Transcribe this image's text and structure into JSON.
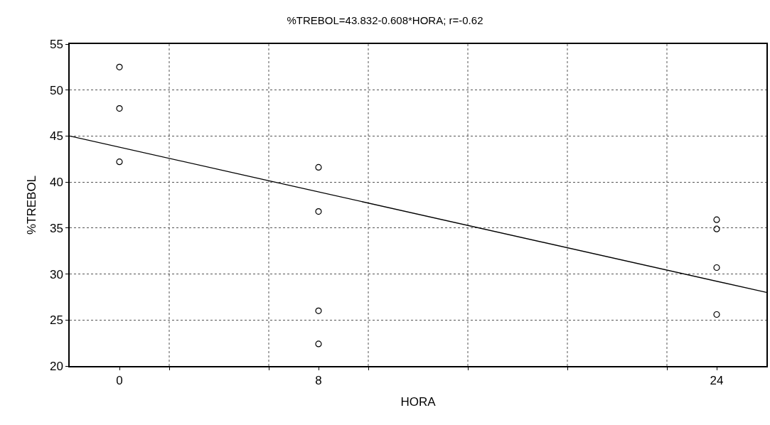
{
  "chart_data": {
    "type": "scatter",
    "title": "%TREBOL=43.832-0.608*HORA; r=-0.62",
    "xlabel": "HORA",
    "ylabel": "%TREBOL",
    "xlim": [
      -2,
      26
    ],
    "xticks": [
      0,
      8,
      24,
      {
        "value": 2,
        "label": null
      },
      {
        "value": 6,
        "label": null
      },
      {
        "value": 10,
        "label": null
      },
      {
        "value": 14,
        "label": null
      },
      {
        "value": 18,
        "label": null
      },
      {
        "value": 22,
        "label": null
      }
    ],
    "ylim": [
      20,
      55
    ],
    "yticks": [
      20,
      25,
      30,
      35,
      40,
      45,
      50,
      55
    ],
    "grid": true,
    "marker": "circle",
    "legend": false,
    "series": [
      {
        "color": "#000000",
        "x": [
          0,
          0,
          0,
          8,
          8,
          8,
          8,
          24,
          24,
          24,
          24
        ],
        "values": [
          52.5,
          48.0,
          42.2,
          41.6,
          36.8,
          26.0,
          22.4,
          35.9,
          34.9,
          30.7,
          25.6
        ]
      },
      {
        "type": "line",
        "marker": "none",
        "color": "#000000",
        "x": [
          -2,
          26
        ],
        "values": [
          45.0,
          28.0
        ]
      }
    ]
  }
}
